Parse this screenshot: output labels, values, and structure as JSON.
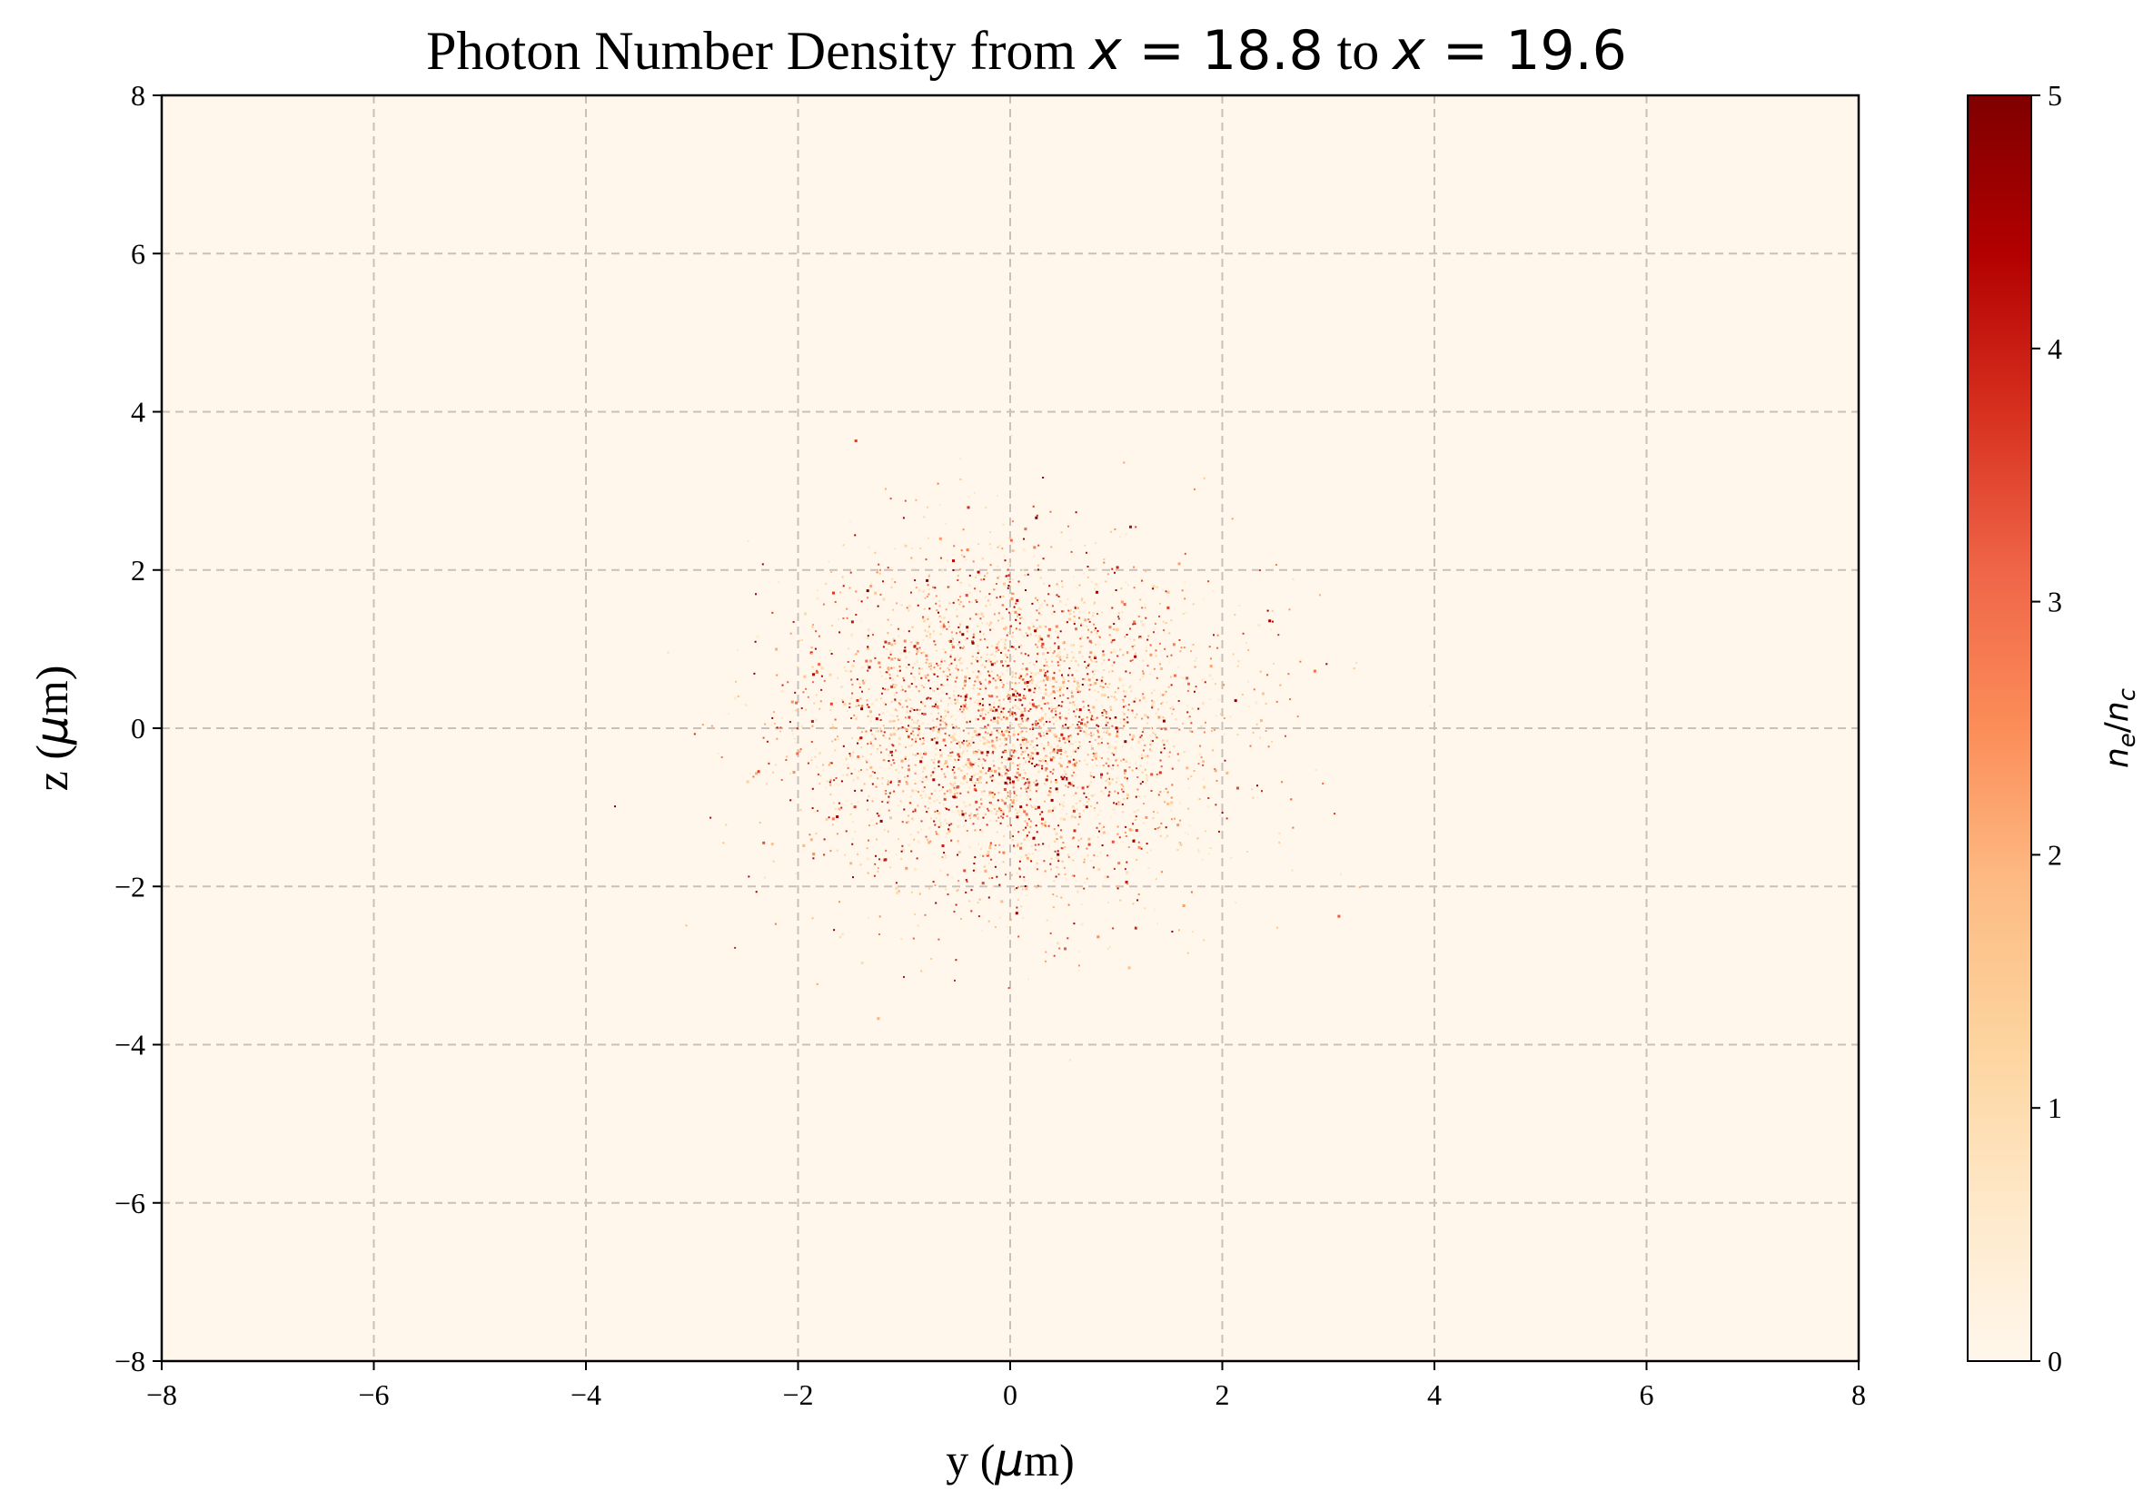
{
  "chart_data": {
    "type": "heatmap",
    "title": {
      "prefix": "Photon Number Density from ",
      "var1": "x",
      "eq1": " = 18.8",
      "mid": " to ",
      "var2": "x",
      "eq2": " = 19.6"
    },
    "xlabel": {
      "var": "y",
      "open": " (",
      "mu": "μ",
      "unit": "m)"
    },
    "ylabel": {
      "var": "z",
      "open": " (",
      "mu": "μ",
      "unit": "m)"
    },
    "xlim": [
      -8,
      8
    ],
    "ylim": [
      -8,
      8
    ],
    "xticks": [
      -8,
      -6,
      -4,
      -2,
      0,
      2,
      4,
      6,
      8
    ],
    "yticks": [
      -8,
      -6,
      -4,
      -2,
      0,
      2,
      4,
      6,
      8
    ],
    "tick_labels_x": [
      "−8",
      "−6",
      "−4",
      "−2",
      "0",
      "2",
      "4",
      "6",
      "8"
    ],
    "tick_labels_y": [
      "−8",
      "−6",
      "−4",
      "−2",
      "0",
      "2",
      "4",
      "6",
      "8"
    ],
    "grid": true,
    "background_color": "#fff7ec",
    "grid_color": "#c9c1b9",
    "colormap": "OrRd",
    "colormap_stops": [
      "#fff7ec",
      "#fee8c8",
      "#fdd49e",
      "#fdbb84",
      "#fc8d59",
      "#ef6548",
      "#d7301f",
      "#b30000",
      "#7f0000"
    ],
    "colorbar": {
      "range": [
        0,
        5
      ],
      "ticks": [
        0,
        1,
        2,
        3,
        4,
        5
      ],
      "tick_labels": [
        "0",
        "1",
        "2",
        "3",
        "4",
        "5"
      ],
      "label": {
        "n": "n",
        "e": "e",
        "slash": "/",
        "n2": "n",
        "c": "c"
      }
    },
    "distribution": {
      "shape": "gaussian-blob",
      "center": [
        0.0,
        0.0
      ],
      "sigma_y": 1.0,
      "sigma_z": 1.1,
      "approx_points": 3600,
      "value_range": [
        0,
        5
      ]
    }
  }
}
